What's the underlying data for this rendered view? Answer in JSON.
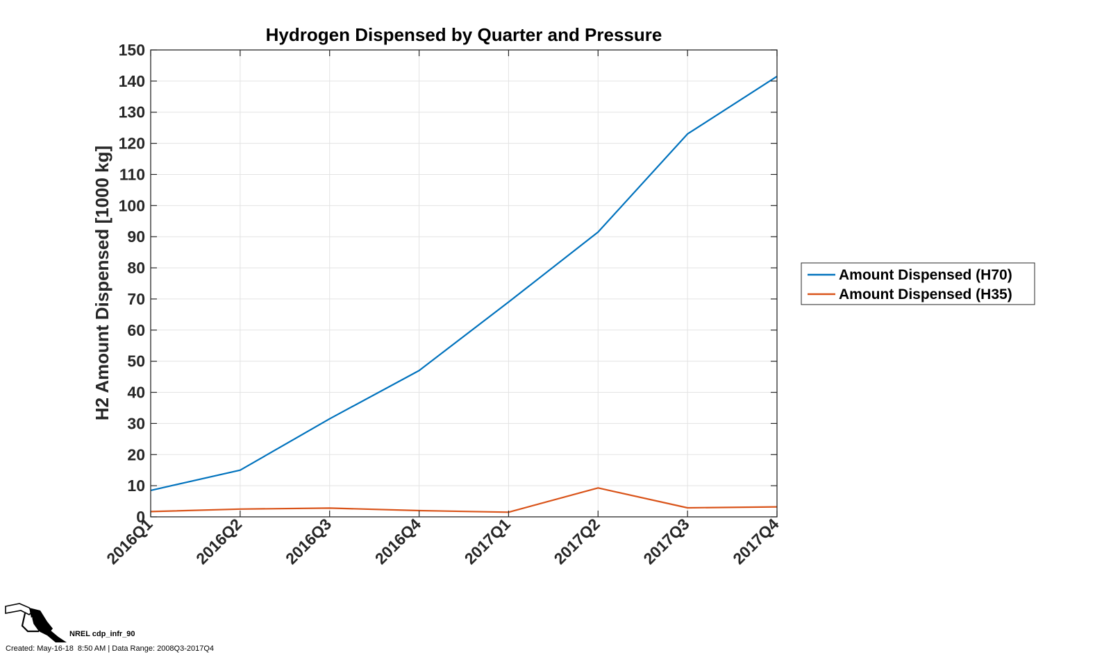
{
  "chart_data": {
    "type": "line",
    "title": "Hydrogen Dispensed by Quarter and Pressure",
    "xlabel": "",
    "ylabel": "H2 Amount Dispensed [1000 kg]",
    "categories": [
      "2016Q1",
      "2016Q2",
      "2016Q3",
      "2016Q4",
      "2017Q1",
      "2017Q2",
      "2017Q3",
      "2017Q4"
    ],
    "ylim": [
      0,
      150
    ],
    "yticks": [
      0,
      10,
      20,
      30,
      40,
      50,
      60,
      70,
      80,
      90,
      100,
      110,
      120,
      130,
      140,
      150
    ],
    "grid": true,
    "legend_position": "right",
    "series": [
      {
        "name": "Amount Dispensed (H70)",
        "color": "#0072BD",
        "values": [
          8.5,
          15,
          31.5,
          47,
          69,
          91.5,
          123,
          141.5
        ]
      },
      {
        "name": "Amount Dispensed (H35)",
        "color": "#D95319",
        "values": [
          1.7,
          2.5,
          2.8,
          2,
          1.5,
          9.3,
          2.9,
          3.2
        ]
      }
    ]
  },
  "footer": {
    "logo_icon": "fuel-nozzle-icon",
    "name": "NREL cdp_infr_90",
    "created": "Created: May-16-18  8:50 AM | Data Range: 2008Q3-2017Q4"
  }
}
